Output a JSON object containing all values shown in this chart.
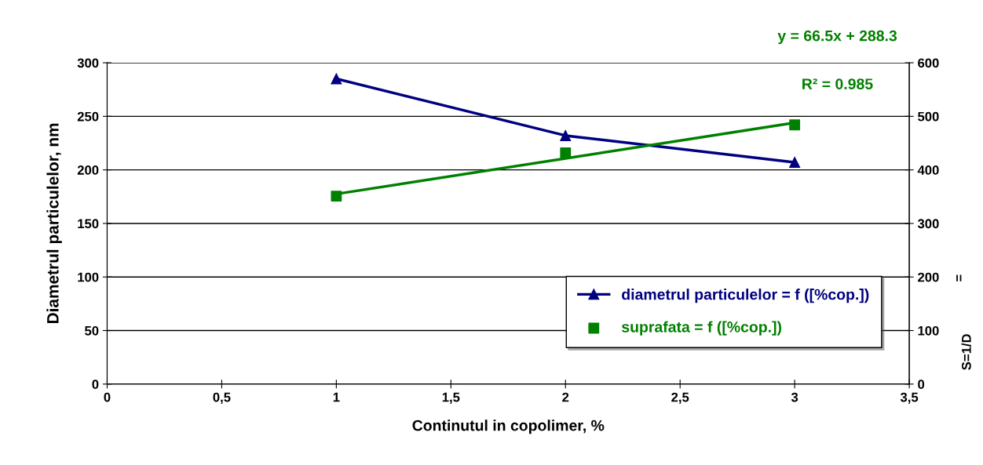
{
  "chart_data": {
    "type": "line",
    "xlabel": "Continutul in copolimer, %",
    "ylabel": "Diametrul particulelor, nm",
    "y2label": "S=1/D",
    "x": [
      1,
      2,
      3
    ],
    "series": [
      {
        "name": "diametrul particulelor = f ([%cop.])",
        "color": "#000080",
        "values": [
          285,
          232,
          207
        ],
        "marker": "triangle"
      },
      {
        "name": "suprafata = f ([%cop.])",
        "color": "#008000",
        "values": [
          351,
          432,
          484
        ],
        "marker": "square",
        "type": "scatter",
        "axis": "y2"
      },
      {
        "color": "#008000",
        "x": [
          1,
          3
        ],
        "values": [
          355,
          488
        ],
        "type": "line",
        "axis": "y2",
        "marker": "none"
      }
    ],
    "xlim": [
      0,
      3.5
    ],
    "xticks": [
      0,
      {
        "value": 0.5,
        "label": "0,5"
      },
      1,
      {
        "value": 1.5,
        "label": "1,5"
      },
      2,
      {
        "value": 2.5,
        "label": "2,5"
      },
      3,
      {
        "value": 3.5,
        "label": "3,5"
      }
    ],
    "ylim": [
      0,
      300
    ],
    "yticks": [
      0,
      50,
      100,
      150,
      200,
      250,
      300
    ],
    "y2lim": [
      0,
      600
    ],
    "y2ticks": [
      0,
      100,
      200,
      300,
      400,
      500,
      600
    ],
    "grid": "y",
    "legend": "bottom right",
    "annotations": [
      "y = 66.5x + 288.3",
      "R² = 0.985",
      "="
    ]
  }
}
